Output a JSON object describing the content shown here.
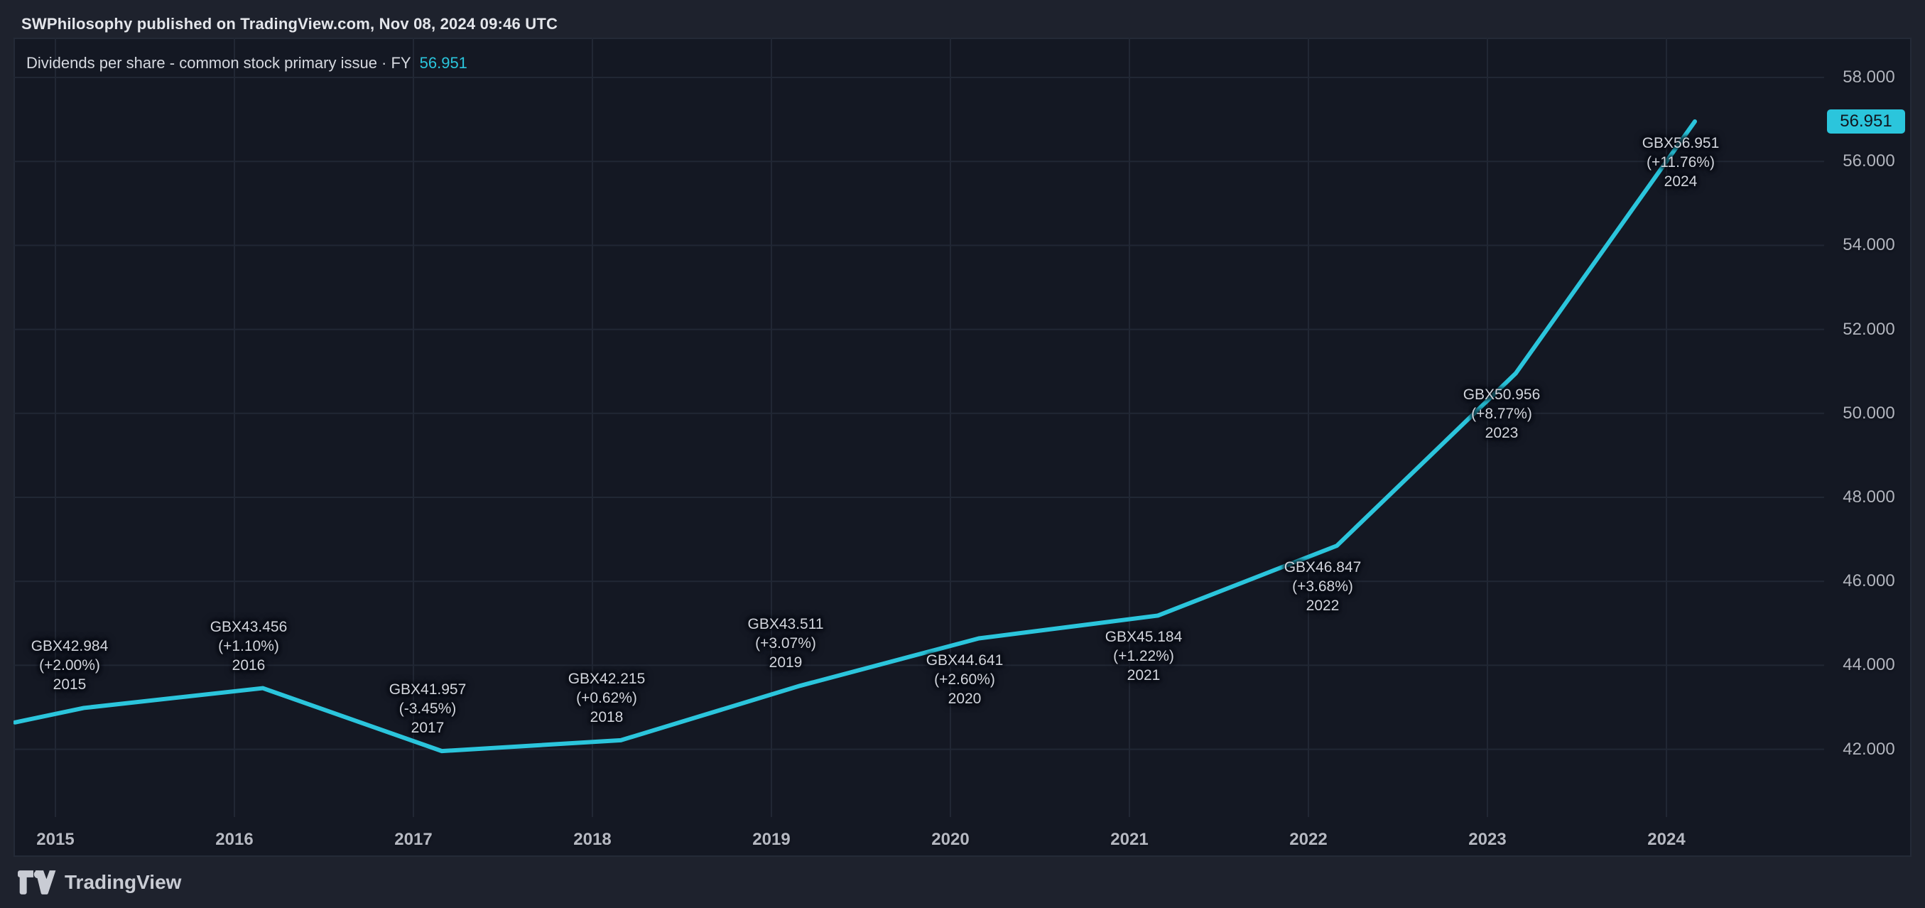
{
  "header": {
    "published_line": "SWPhilosophy published on TradingView.com, Nov 08, 2024 09:46 UTC"
  },
  "legend": {
    "title": "Dividends per share - common stock primary issue · FY",
    "value": "56.951"
  },
  "chart_data": {
    "type": "line",
    "title": "Dividends per share - common stock primary issue · FY",
    "unit": "GBX",
    "series_name": "Dividends per share",
    "x_ticks": [
      "2015",
      "2016",
      "2017",
      "2018",
      "2019",
      "2020",
      "2021",
      "2022",
      "2023",
      "2024"
    ],
    "y_ticks": [
      "58.000",
      "56.000",
      "54.000",
      "52.000",
      "50.000",
      "48.000",
      "46.000",
      "44.000",
      "42.000"
    ],
    "ylim": [
      40.4,
      58.9
    ],
    "grid": true,
    "legend_position": "top-left",
    "accent_color": "#2bc5dc",
    "badge_text_color": "#10151e",
    "left_edge_value": 42.64,
    "last_price_badge": "56.951",
    "points": [
      {
        "year": "2015",
        "value": 42.984,
        "price_label": "GBX42.984",
        "change_label": "(+2.00%)",
        "year_label": "2015",
        "label_position": "above"
      },
      {
        "year": "2016",
        "value": 43.456,
        "price_label": "GBX43.456",
        "change_label": "(+1.10%)",
        "year_label": "2016",
        "label_position": "above"
      },
      {
        "year": "2017",
        "value": 41.957,
        "price_label": "GBX41.957",
        "change_label": "(-3.45%)",
        "year_label": "2017",
        "label_position": "above"
      },
      {
        "year": "2018",
        "value": 42.215,
        "price_label": "GBX42.215",
        "change_label": "(+0.62%)",
        "year_label": "2018",
        "label_position": "above"
      },
      {
        "year": "2019",
        "value": 43.511,
        "price_label": "GBX43.511",
        "change_label": "(+3.07%)",
        "year_label": "2019",
        "label_position": "above"
      },
      {
        "year": "2020",
        "value": 44.641,
        "price_label": "GBX44.641",
        "change_label": "(+2.60%)",
        "year_label": "2020",
        "label_position": "below"
      },
      {
        "year": "2021",
        "value": 45.184,
        "price_label": "GBX45.184",
        "change_label": "(+1.22%)",
        "year_label": "2021",
        "label_position": "below"
      },
      {
        "year": "2022",
        "value": 46.847,
        "price_label": "GBX46.847",
        "change_label": "(+3.68%)",
        "year_label": "2022",
        "label_position": "below"
      },
      {
        "year": "2023",
        "value": 50.956,
        "price_label": "GBX50.956",
        "change_label": "(+8.77%)",
        "year_label": "2023",
        "label_position": "below"
      },
      {
        "year": "2024",
        "value": 56.951,
        "price_label": "GBX56.951",
        "change_label": "(+11.76%)",
        "year_label": "2024",
        "label_position": "below"
      }
    ]
  },
  "footer": {
    "brand": "TradingView"
  }
}
